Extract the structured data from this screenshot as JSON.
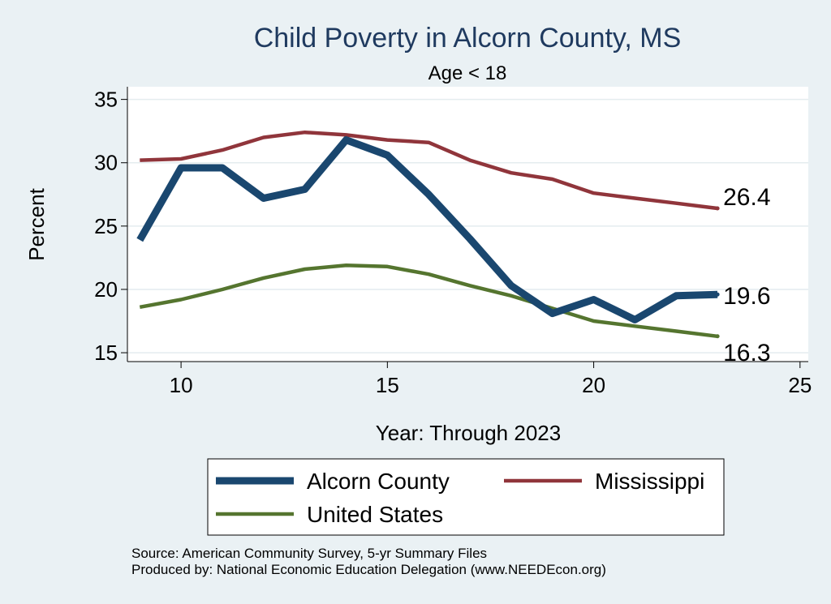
{
  "chart_data": {
    "type": "line",
    "title": "Child Poverty in Alcorn County, MS",
    "subtitle": "Age < 18",
    "xlabel": "Year: Through 2023",
    "ylabel": "Percent",
    "xlim": [
      8.7,
      25.2
    ],
    "ylim": [
      14.3,
      36
    ],
    "x_ticks": [
      10,
      15,
      20,
      25
    ],
    "y_ticks": [
      15,
      20,
      25,
      30,
      35
    ],
    "grid": true,
    "legend_position": "bottom",
    "x": [
      9,
      10,
      11,
      12,
      13,
      14,
      15,
      16,
      17,
      18,
      19,
      20,
      21,
      22,
      23
    ],
    "series": [
      {
        "name": "Alcorn County",
        "color": "#1a476f",
        "values": [
          23.9,
          29.6,
          29.6,
          27.2,
          27.9,
          31.8,
          30.6,
          27.5,
          24.0,
          20.3,
          18.1,
          19.2,
          17.6,
          19.5,
          19.6
        ],
        "end_label": "19.6"
      },
      {
        "name": "Mississippi",
        "color": "#90353b",
        "values": [
          30.2,
          30.3,
          31.0,
          32.0,
          32.4,
          32.2,
          31.8,
          31.6,
          30.2,
          29.2,
          28.7,
          27.6,
          27.2,
          26.8,
          26.4
        ],
        "end_label": "26.4"
      },
      {
        "name": "United States",
        "color": "#55752f",
        "values": [
          18.6,
          19.2,
          20.0,
          20.9,
          21.6,
          21.9,
          21.8,
          21.2,
          20.3,
          19.5,
          18.5,
          17.5,
          17.1,
          16.7,
          16.3
        ],
        "end_label": "16.3"
      }
    ],
    "source_lines": [
      "Source: American Community Survey, 5-yr Summary Files",
      "Produced by: National Economic Education Delegation (www.NEEDEcon.org)"
    ]
  }
}
